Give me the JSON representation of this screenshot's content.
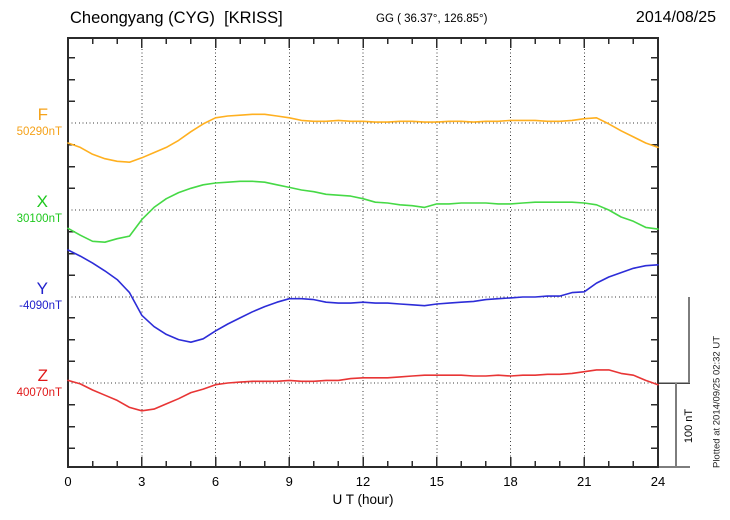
{
  "header": {
    "title": "Cheongyang (CYG)  [KRISS]",
    "coords": "GG ( 36.37°, 126.85°)",
    "date": "2014/08/25"
  },
  "footer_caption": "Plotted at 2014/09/25 02:32 UT",
  "scale_bar": {
    "label": "100 nT",
    "span_nT": 100
  },
  "axis": {
    "xlabel": "U T (hour)",
    "x_tick_labels": [
      "0",
      "3",
      "6",
      "9",
      "12",
      "15",
      "18",
      "21",
      "24"
    ],
    "x_range": [
      0,
      24
    ],
    "minor_tick_hours": 1,
    "y_minor_tick_nT": 25
  },
  "colors": {
    "axis": "#2b2b2b",
    "grid": "#3c3c3c",
    "scalebar": "#7d7d7d"
  },
  "chart_data": {
    "type": "line",
    "title": "Cheongyang (CYG) [KRISS] magnetogram 2014/08/25",
    "xlabel": "U T (hour)",
    "x_unit": "hour",
    "x_start": 0,
    "x_step": 0.5,
    "x_range": [
      0,
      24
    ],
    "grid": true,
    "series": [
      {
        "name": "F",
        "baseline_label": "50290nT",
        "baseline_nT": 50290,
        "label_color": "#f5a21a",
        "line_color": "#ffb020",
        "values": [
          50267,
          50262,
          50254,
          50249,
          50246,
          50245,
          50250,
          50256,
          50262,
          50270,
          50280,
          50289,
          50296,
          50298,
          50299,
          50300,
          50300,
          50298,
          50296,
          50293,
          50292,
          50292,
          50293,
          50292,
          50292,
          50291,
          50291,
          50292,
          50292,
          50291,
          50291,
          50292,
          50292,
          50291,
          50292,
          50292,
          50293,
          50293,
          50293,
          50292,
          50292,
          50293,
          50295,
          50296,
          50289,
          50281,
          50274,
          50267,
          50262
        ]
      },
      {
        "name": "X",
        "baseline_label": "30100nT",
        "baseline_nT": 30100,
        "label_color": "#1ec81e",
        "line_color": "#46d946",
        "values": [
          30079,
          30071,
          30064,
          30063,
          30067,
          30070,
          30089,
          30103,
          30113,
          30120,
          30125,
          30129,
          30131,
          30132,
          30133,
          30133,
          30132,
          30129,
          30126,
          30123,
          30121,
          30118,
          30117,
          30116,
          30113,
          30109,
          30108,
          30106,
          30105,
          30103,
          30107,
          30107,
          30108,
          30108,
          30108,
          30107,
          30107,
          30108,
          30109,
          30109,
          30109,
          30109,
          30108,
          30106,
          30100,
          30092,
          30087,
          30080,
          30078
        ]
      },
      {
        "name": "Y",
        "baseline_label": "-4090nT",
        "baseline_nT": -4090,
        "label_color": "#2222cc",
        "line_color": "#2d2dd8",
        "values": [
          -4036,
          -4043,
          -4051,
          -4060,
          -4070,
          -4085,
          -4111,
          -4124,
          -4133,
          -4139,
          -4142,
          -4138,
          -4129,
          -4121,
          -4114,
          -4107,
          -4101,
          -4096,
          -4092,
          -4092,
          -4093,
          -4096,
          -4097,
          -4097,
          -4096,
          -4097,
          -4097,
          -4098,
          -4099,
          -4100,
          -4098,
          -4097,
          -4096,
          -4095,
          -4093,
          -4092,
          -4091,
          -4090,
          -4090,
          -4089,
          -4089,
          -4085,
          -4084,
          -4074,
          -4067,
          -4062,
          -4057,
          -4054,
          -4053
        ]
      },
      {
        "name": "Z",
        "baseline_label": "40070nT",
        "baseline_nT": 40070,
        "label_color": "#e01818",
        "line_color": "#e83535",
        "values": [
          40073,
          40069,
          40062,
          40056,
          40050,
          40042,
          40038,
          40040,
          40046,
          40052,
          40059,
          40063,
          40068,
          40070,
          40071,
          40072,
          40072,
          40072,
          40073,
          40072,
          40072,
          40073,
          40073,
          40075,
          40076,
          40076,
          40076,
          40077,
          40078,
          40079,
          40079,
          40079,
          40079,
          40078,
          40078,
          40079,
          40078,
          40079,
          40079,
          40080,
          40080,
          40081,
          40083,
          40085,
          40085,
          40081,
          40079,
          40073,
          40068
        ]
      }
    ]
  }
}
